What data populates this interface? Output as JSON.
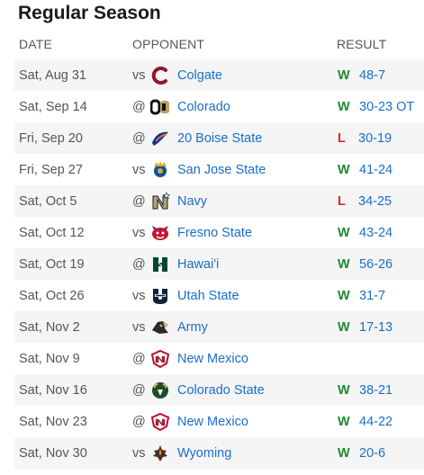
{
  "title": "Regular Season",
  "columns": {
    "date": "DATE",
    "opponent": "OPPONENT",
    "result": "RESULT"
  },
  "games": [
    {
      "date": "Sat, Aug 31",
      "prefix": "vs",
      "opponent": "Colgate",
      "logo": "colgate-logo",
      "color": "#8b1a2b",
      "wl": "W",
      "score": "48-7"
    },
    {
      "date": "Sat, Sep 14",
      "prefix": "@",
      "opponent": "Colorado",
      "logo": "colorado-logo",
      "color": "#b8a06a",
      "wl": "W",
      "score": "30-23 OT"
    },
    {
      "date": "Fri, Sep 20",
      "prefix": "@",
      "opponent": "20 Boise State",
      "logo": "boise-state-logo",
      "color": "#0033a0",
      "wl": "L",
      "score": "30-19"
    },
    {
      "date": "Fri, Sep 27",
      "prefix": "vs",
      "opponent": "San Jose State",
      "logo": "san-jose-state-logo",
      "color": "#e5a823",
      "wl": "W",
      "score": "41-24"
    },
    {
      "date": "Sat, Oct 5",
      "prefix": "@",
      "opponent": "Navy",
      "logo": "navy-logo",
      "color": "#b5a36a",
      "wl": "L",
      "score": "34-25"
    },
    {
      "date": "Sat, Oct 12",
      "prefix": "vs",
      "opponent": "Fresno State",
      "logo": "fresno-state-logo",
      "color": "#c41230",
      "wl": "W",
      "score": "43-24"
    },
    {
      "date": "Sat, Oct 19",
      "prefix": "@",
      "opponent": "Hawai'i",
      "logo": "hawaii-logo",
      "color": "#024731",
      "wl": "W",
      "score": "56-26"
    },
    {
      "date": "Sat, Oct 26",
      "prefix": "vs",
      "opponent": "Utah State",
      "logo": "utah-state-logo",
      "color": "#0f2439",
      "wl": "W",
      "score": "31-7"
    },
    {
      "date": "Sat, Nov 2",
      "prefix": "vs",
      "opponent": "Army",
      "logo": "army-logo",
      "color": "#2b2b2b",
      "wl": "W",
      "score": "17-13"
    },
    {
      "date": "Sat, Nov 9",
      "prefix": "@",
      "opponent": "New Mexico",
      "logo": "new-mexico-logo",
      "color": "#ba0c2f",
      "wl": "",
      "score": ""
    },
    {
      "date": "Sat, Nov 16",
      "prefix": "@",
      "opponent": "Colorado State",
      "logo": "colorado-state-logo",
      "color": "#1e4d2b",
      "wl": "W",
      "score": "38-21"
    },
    {
      "date": "Sat, Nov 23",
      "prefix": "@",
      "opponent": "New Mexico",
      "logo": "new-mexico-logo",
      "color": "#ba0c2f",
      "wl": "W",
      "score": "44-22"
    },
    {
      "date": "Sat, Nov 30",
      "prefix": "vs",
      "opponent": "Wyoming",
      "logo": "wyoming-logo",
      "color": "#492f24",
      "wl": "W",
      "score": "20-6"
    }
  ],
  "colors": {
    "win": "#1e8a34",
    "loss": "#d32f2f",
    "link": "#1a6fc9",
    "row_alt": "#f5f5f5"
  }
}
